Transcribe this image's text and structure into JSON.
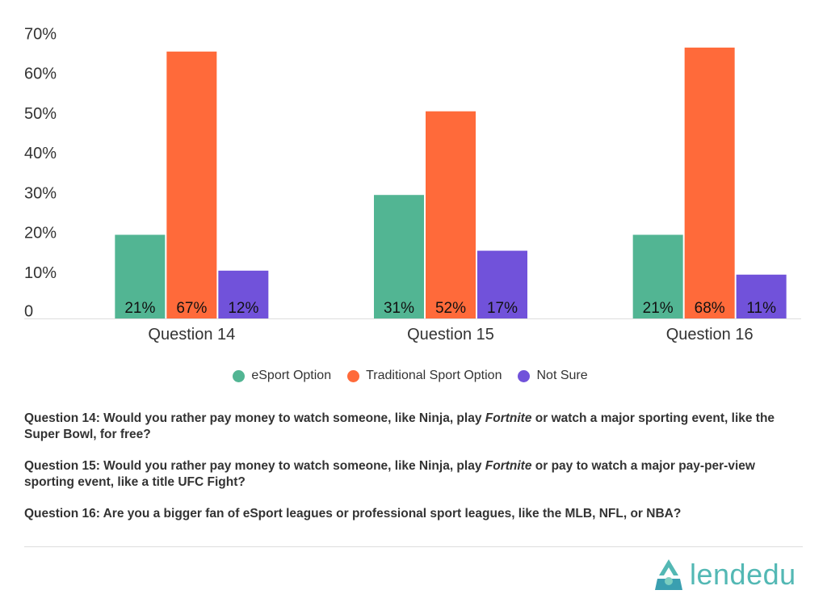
{
  "chart_data": {
    "type": "bar",
    "categories": [
      "Question 14",
      "Question 15",
      "Question 16"
    ],
    "series": [
      {
        "name": "eSport Option",
        "color": "#52b593",
        "values": [
          21,
          31,
          21
        ],
        "labels": [
          "21%",
          "31%",
          "21%"
        ]
      },
      {
        "name": "Traditional Sport Option",
        "color": "#ff6a3a",
        "values": [
          67,
          52,
          68
        ],
        "labels": [
          "67%",
          "52%",
          "68%"
        ]
      },
      {
        "name": "Not Sure",
        "color": "#7152da",
        "values": [
          12,
          17,
          11
        ],
        "labels": [
          "12%",
          "17%",
          "11%"
        ]
      }
    ],
    "ylim": [
      0,
      70
    ],
    "yticks": [
      0,
      10,
      20,
      30,
      40,
      50,
      60,
      70
    ],
    "ytick_labels": [
      "0",
      "10%",
      "20%",
      "30%",
      "40%",
      "50%",
      "60%",
      "70%"
    ],
    "legend_position": "bottom",
    "grid": false
  },
  "legend": {
    "items": [
      {
        "label": "eSport Option",
        "color": "#52b593"
      },
      {
        "label": "Traditional Sport Option",
        "color": "#ff6a3a"
      },
      {
        "label": "Not Sure",
        "color": "#7152da"
      }
    ]
  },
  "questions": [
    {
      "prefix": "Question 14: Would you rather pay money to watch someone, like Ninja, play ",
      "italic": "Fortnite",
      "suffix": " or watch a major sporting event, like the Super Bowl, for free?"
    },
    {
      "prefix": "Question 15: Would you rather pay money to watch someone, like Ninja, play ",
      "italic": "Fortnite",
      "suffix": " or pay to watch a major pay-per-view sporting event, like a title UFC Fight?"
    },
    {
      "prefix": "Question 16: Are you a bigger fan of eSport leagues or professional sport leagues, like the MLB, NFL, or NBA?",
      "italic": "",
      "suffix": ""
    }
  ],
  "brand": {
    "name": "lendedu",
    "color": "#53b8b4",
    "icon": "lendedu-logo-icon"
  }
}
